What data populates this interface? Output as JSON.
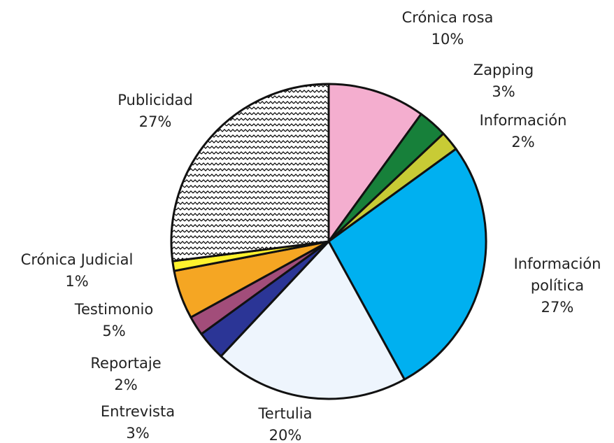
{
  "chart_data": {
    "type": "pie",
    "categories": [
      "Crónica rosa",
      "Zapping",
      "Información",
      "Información política",
      "Tertulia",
      "Entrevista",
      "Reportaje",
      "Testimonio",
      "Crónica Judicial",
      "Publicidad"
    ],
    "values": [
      10,
      3,
      2,
      27,
      20,
      3,
      2,
      5,
      1,
      27
    ],
    "value_labels": [
      "10%",
      "3%",
      "2%",
      "27%",
      "20%",
      "3%",
      "2%",
      "5%",
      "1%",
      "27%"
    ],
    "colors": [
      "#f4aecf",
      "#17803a",
      "#c8cb35",
      "#00b0f0",
      "#eef5fd",
      "#2b3596",
      "#a24d7a",
      "#f5a623",
      "#fff22e",
      "url(#zigzag)"
    ]
  }
}
